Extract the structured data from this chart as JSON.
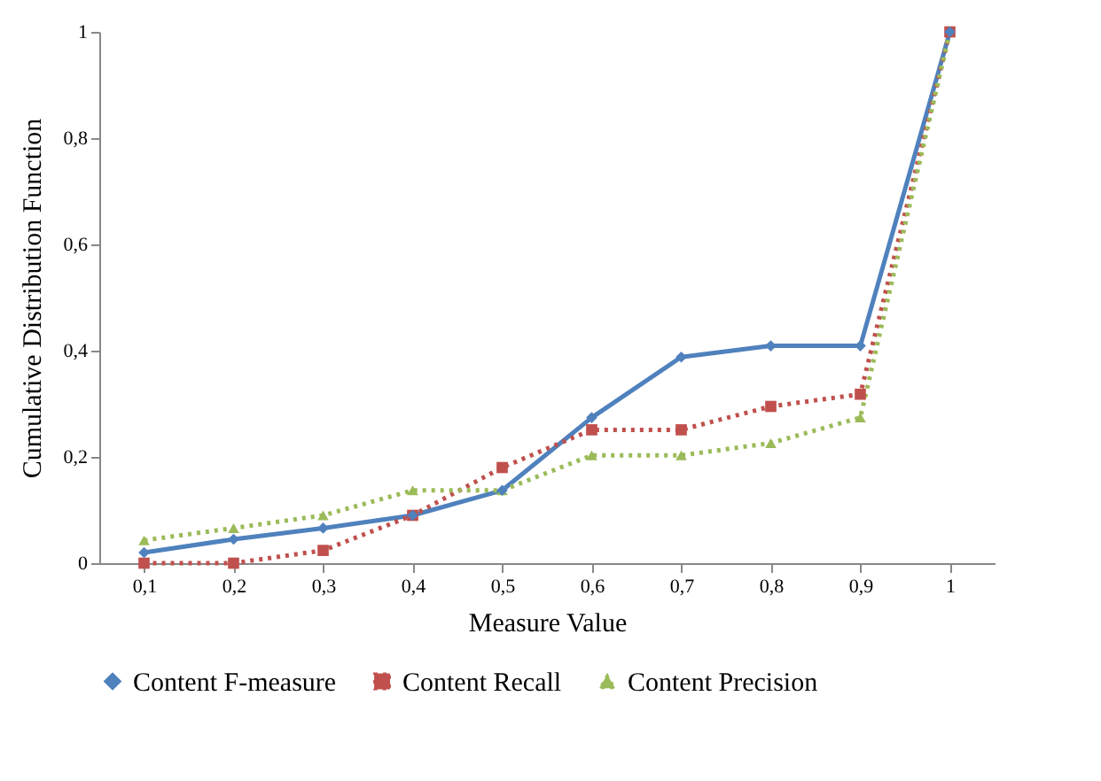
{
  "chart_data": {
    "type": "line",
    "xlabel": "Measure Value",
    "ylabel": "Cumulative Distribution Function",
    "categories": [
      "0,1",
      "0,2",
      "0,3",
      "0,4",
      "0,5",
      "0,6",
      "0,7",
      "0,8",
      "0,9",
      "1"
    ],
    "series": [
      {
        "name": "Content F-measure",
        "color": "#4f81bd",
        "marker": "diamond",
        "line_style": "solid",
        "values": [
          0.02,
          0.045,
          0.066,
          0.09,
          0.137,
          0.274,
          0.388,
          0.409,
          0.409,
          1
        ]
      },
      {
        "name": "Content Recall",
        "color": "#c0504d",
        "marker": "square",
        "line_style": "dotted",
        "values": [
          0,
          0,
          0.024,
          0.09,
          0.18,
          0.251,
          0.251,
          0.295,
          0.318,
          1
        ]
      },
      {
        "name": "Content Precision",
        "color": "#9bbb59",
        "marker": "triangle",
        "line_style": "dotted",
        "values": [
          0.043,
          0.066,
          0.09,
          0.137,
          0.137,
          0.203,
          0.203,
          0.226,
          0.274,
          1
        ]
      }
    ],
    "ylim": [
      0,
      1
    ],
    "yticks": [
      0,
      {
        "value": 0.2,
        "label": "0,2"
      },
      {
        "value": 0.4,
        "label": "0,4"
      },
      {
        "value": 0.6,
        "label": "0,6"
      },
      {
        "value": 0.8,
        "label": "0,8"
      },
      1
    ],
    "grid": false,
    "legend": "bottom"
  }
}
